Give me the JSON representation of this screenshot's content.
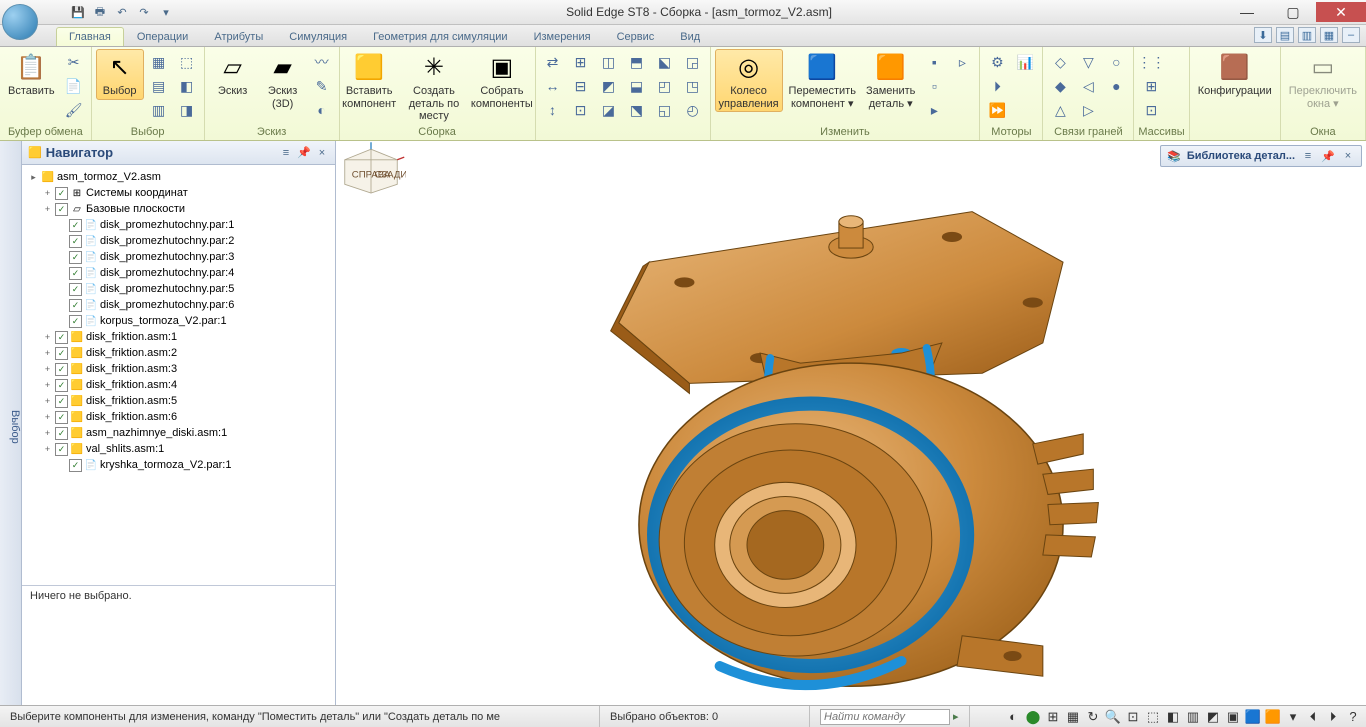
{
  "window": {
    "title": "Solid Edge ST8 - Сборка - [asm_tormoz_V2.asm]"
  },
  "qat": [
    "save",
    "undo",
    "redo",
    "dropdown"
  ],
  "tabs": {
    "items": [
      "Главная",
      "Операции",
      "Атрибуты",
      "Симуляция",
      "Геометрия для симуляции",
      "Измерения",
      "Сервис",
      "Вид"
    ],
    "active_index": 0
  },
  "ribbon": {
    "groups": [
      {
        "label": "Буфер обмена",
        "big": [
          {
            "label": "Вставить",
            "icon": "📋"
          }
        ],
        "smalls": [
          "✂",
          "📄",
          "🖌"
        ]
      },
      {
        "label": "Выбор",
        "big": [
          {
            "label": "Выбор",
            "icon": "↖",
            "active": true
          }
        ],
        "smalls": [
          "▦",
          "▤",
          "▥",
          "⬚",
          "◧",
          "◨"
        ]
      },
      {
        "label": "Эскиз",
        "big": [
          {
            "label": "Эскиз",
            "icon": "▱"
          },
          {
            "label": "Эскиз (3D)",
            "icon": "▰"
          }
        ],
        "smalls": [
          "〰",
          "✎",
          "◐"
        ]
      },
      {
        "label": "Сборка",
        "big": [
          {
            "label": "Вставить компонент",
            "icon": "🟨"
          },
          {
            "label": "Создать деталь по месту",
            "icon": "✳"
          },
          {
            "label": "Собрать компоненты",
            "icon": "▣"
          }
        ],
        "smalls": []
      },
      {
        "label": "",
        "big": [],
        "smalls": [
          "⇄",
          "↔",
          "↕",
          "⊞",
          "⊟",
          "⊡",
          "◫",
          "◩",
          "◪",
          "⬒",
          "⬓",
          "⬔",
          "⬕",
          "◰",
          "◱",
          "◲",
          "◳",
          "◴"
        ]
      },
      {
        "label": "Изменить",
        "big": [
          {
            "label": "Колесо управления",
            "icon": "◎",
            "active": true
          },
          {
            "label": "Переместить компонент ▾",
            "icon": "🟦"
          },
          {
            "label": "Заменить деталь ▾",
            "icon": "🟧"
          }
        ],
        "smalls": [
          "▪",
          "▫",
          "▸",
          "▹"
        ]
      },
      {
        "label": "Моторы",
        "big": [],
        "smalls": [
          "⚙",
          "⏵",
          "⏩",
          "📊"
        ]
      },
      {
        "label": "Связи граней",
        "big": [],
        "smalls": [
          "◇",
          "◆",
          "△",
          "▽",
          "◁",
          "▷",
          "○",
          "●"
        ]
      },
      {
        "label": "Массивы",
        "big": [],
        "smalls": [
          "⋮⋮",
          "⊞",
          "⊡"
        ]
      },
      {
        "label": "",
        "big": [
          {
            "label": "Конфигурации",
            "icon": "🟫"
          }
        ],
        "smalls": []
      },
      {
        "label": "Окна",
        "big": [
          {
            "label": "Переключить окна ▾",
            "icon": "▭",
            "disabled": true
          }
        ],
        "smalls": []
      }
    ]
  },
  "sidebar_tab": "Выбор",
  "navigator": {
    "title": "Навигатор",
    "root": "asm_tormoz_V2.asm",
    "nodes": [
      {
        "tw": "+",
        "chk": true,
        "ico": "⊞",
        "label": "Системы координат",
        "ind": 1
      },
      {
        "tw": "+",
        "chk": true,
        "ico": "▱",
        "label": "Базовые плоскости",
        "ind": 1
      },
      {
        "tw": "",
        "chk": true,
        "ico": "📄",
        "label": "disk_promezhutochny.par:1",
        "ind": 2
      },
      {
        "tw": "",
        "chk": true,
        "ico": "📄",
        "label": "disk_promezhutochny.par:2",
        "ind": 2
      },
      {
        "tw": "",
        "chk": true,
        "ico": "📄",
        "label": "disk_promezhutochny.par:3",
        "ind": 2
      },
      {
        "tw": "",
        "chk": true,
        "ico": "📄",
        "label": "disk_promezhutochny.par:4",
        "ind": 2
      },
      {
        "tw": "",
        "chk": true,
        "ico": "📄",
        "label": "disk_promezhutochny.par:5",
        "ind": 2
      },
      {
        "tw": "",
        "chk": true,
        "ico": "📄",
        "label": "disk_promezhutochny.par:6",
        "ind": 2
      },
      {
        "tw": "",
        "chk": true,
        "ico": "📄",
        "label": "korpus_tormoza_V2.par:1",
        "ind": 2
      },
      {
        "tw": "+",
        "chk": true,
        "ico": "🟨",
        "label": "disk_friktion.asm:1",
        "ind": 1
      },
      {
        "tw": "+",
        "chk": true,
        "ico": "🟨",
        "label": "disk_friktion.asm:2",
        "ind": 1
      },
      {
        "tw": "+",
        "chk": true,
        "ico": "🟨",
        "label": "disk_friktion.asm:3",
        "ind": 1
      },
      {
        "tw": "+",
        "chk": true,
        "ico": "🟨",
        "label": "disk_friktion.asm:4",
        "ind": 1
      },
      {
        "tw": "+",
        "chk": true,
        "ico": "🟨",
        "label": "disk_friktion.asm:5",
        "ind": 1
      },
      {
        "tw": "+",
        "chk": true,
        "ico": "🟨",
        "label": "disk_friktion.asm:6",
        "ind": 1
      },
      {
        "tw": "+",
        "chk": true,
        "ico": "🟨",
        "label": "asm_nazhimnye_diski.asm:1",
        "ind": 1
      },
      {
        "tw": "+",
        "chk": true,
        "ico": "🟨",
        "label": "val_shlits.asm:1",
        "ind": 1
      },
      {
        "tw": "",
        "chk": true,
        "ico": "📄",
        "label": "kryshka_tormoza_V2.par:1",
        "ind": 2
      }
    ],
    "selection_info": "Ничего не выбрано."
  },
  "parts_library": {
    "title": "Библиотека детал..."
  },
  "view_cube": {
    "left": "СПРАВА",
    "right": "СЗАДИ"
  },
  "statusbar": {
    "hint": "Выберите компоненты для изменения, команду \"Поместить деталь\" или \"Создать деталь по ме",
    "selected": "Выбрано объектов: 0",
    "find_placeholder": "Найти команду"
  },
  "model_colors": {
    "body": "#cc8a3d",
    "body_dark": "#a56820",
    "body_hi": "#e8b678",
    "accent": "#1e90d8",
    "accent_dark": "#0a6aa8",
    "edge": "#6a4410"
  }
}
